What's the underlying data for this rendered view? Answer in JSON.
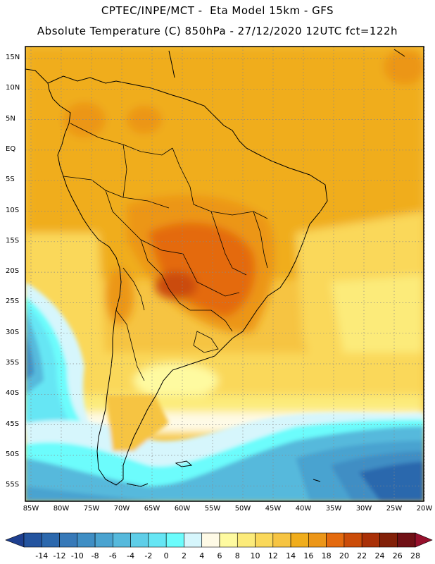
{
  "title_line1": "CPTEC/INPE/MCT -  Eta Model 15km - GFS",
  "title_line2": "Absolute Temperature (C) 850hPa - 27/12/2020 12UTC fct=122h",
  "lat_labels": [
    "15N",
    "10N",
    "5N",
    "EQ",
    "5S",
    "10S",
    "15S",
    "20S",
    "25S",
    "30S",
    "35S",
    "40S",
    "45S",
    "50S",
    "55S"
  ],
  "lon_labels": [
    "85W",
    "80W",
    "75W",
    "70W",
    "65W",
    "60W",
    "55W",
    "50W",
    "45W",
    "40W",
    "35W",
    "30W",
    "25W",
    "20W"
  ],
  "colorbar": {
    "labels": [
      "-14",
      "-12",
      "-10",
      "-8",
      "-6",
      "-4",
      "-2",
      "0",
      "2",
      "4",
      "6",
      "8",
      "10",
      "12",
      "14",
      "16",
      "18",
      "20",
      "22",
      "24",
      "26",
      "28"
    ],
    "colors": [
      "#1e3f8f",
      "#24549f",
      "#2c68ad",
      "#3779b8",
      "#3f8ec4",
      "#4aa3d0",
      "#56b9dc",
      "#5fcee8",
      "#66e6f4",
      "#6cfcfc",
      "#d6f6fc",
      "#fefae6",
      "#fefaa0",
      "#fceb7a",
      "#fad85a",
      "#f6c442",
      "#f0ad1c",
      "#ec9618",
      "#e46a0e",
      "#cb4c08",
      "#a93007",
      "#822008",
      "#701015",
      "#96102c"
    ]
  }
}
